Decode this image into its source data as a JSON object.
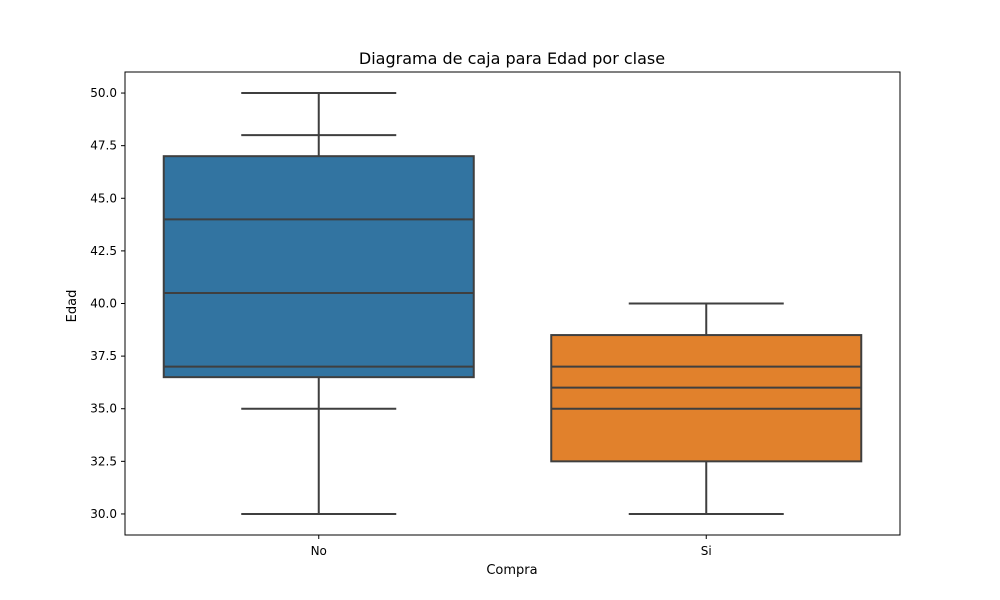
{
  "chart_data": {
    "type": "box",
    "title": "Diagrama de caja para Edad por clase",
    "xlabel": "Compra",
    "ylabel": "Edad",
    "ylim": [
      29.0,
      51.0
    ],
    "yticks": [
      30.0,
      32.5,
      35.0,
      37.5,
      40.0,
      42.5,
      45.0,
      47.5,
      50.0
    ],
    "ytick_labels": [
      "30.0",
      "32.5",
      "35.0",
      "37.5",
      "40.0",
      "42.5",
      "45.0",
      "47.5",
      "50.0"
    ],
    "categories": [
      "No",
      "Si"
    ],
    "colors": [
      "#3274a1",
      "#e1812c"
    ],
    "line_color": "#3f3f3f",
    "grid": false,
    "boxes": [
      {
        "category": "No",
        "min": 30.0,
        "q1": 36.5,
        "median": 40.5,
        "q3": 47.0,
        "max": 50.0,
        "extra_lines": [
          37.0,
          44.0
        ],
        "whisker_caps": [
          30.0,
          35.0,
          48.0,
          50.0
        ],
        "whisker_segments": [
          [
            30.0,
            37.0
          ],
          [
            45.0,
            50.0
          ]
        ]
      },
      {
        "category": "Si",
        "min": 30.0,
        "q1": 32.5,
        "median": 36.0,
        "q3": 38.5,
        "max": 40.0,
        "extra_lines": [
          35.0,
          37.0
        ],
        "whisker_caps": [
          30.0,
          40.0
        ],
        "whisker_segments": [
          [
            30.0,
            32.5
          ],
          [
            35.0,
            36.0
          ],
          [
            37.5,
            40.0
          ]
        ]
      }
    ]
  }
}
